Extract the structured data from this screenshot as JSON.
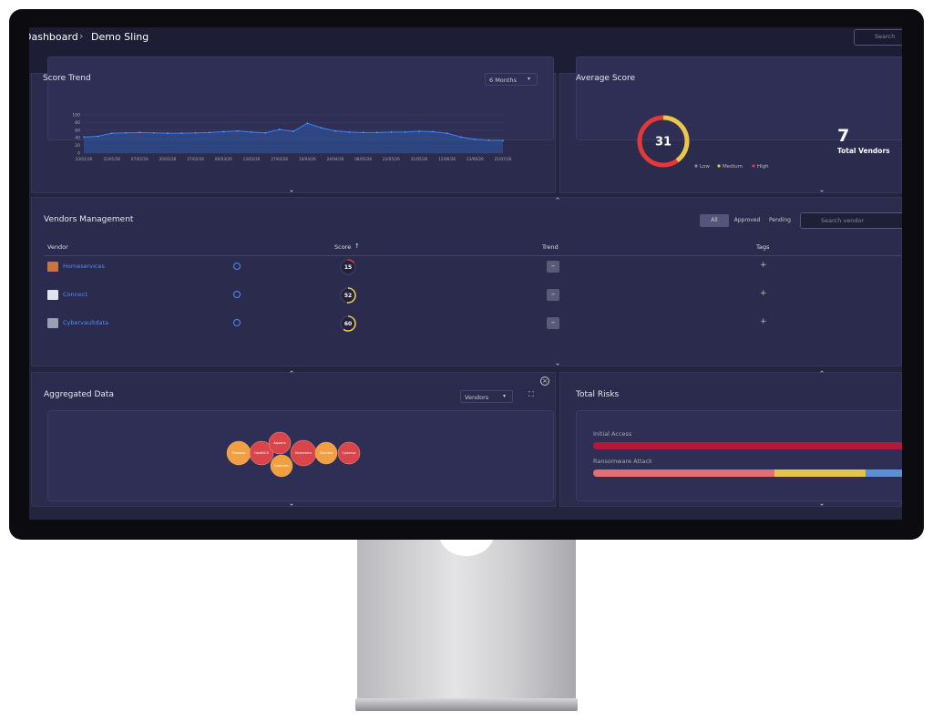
{
  "header": {
    "breadcrumb": [
      "Dashboard",
      "Demo Sling"
    ],
    "search_placeholder": "Search"
  },
  "score_trend": {
    "title": "Score Trend",
    "period": "6 Months",
    "ylim": [
      0,
      100
    ],
    "yticks": [
      0,
      20,
      40,
      60,
      80,
      100
    ],
    "xticks": [
      "23/01/26",
      "31/01/26",
      "07/02/26",
      "20/02/26",
      "27/02/26",
      "06/03/26",
      "13/03/26",
      "27/03/26",
      "10/04/26",
      "24/04/26",
      "08/05/26",
      "22/05/26",
      "31/05/26",
      "12/06/26",
      "23/06/26",
      "21/07/26"
    ],
    "values": [
      42,
      44,
      52,
      53,
      54,
      53,
      52,
      52,
      53,
      54,
      56,
      58,
      55,
      53,
      62,
      57,
      78,
      66,
      58,
      55,
      54,
      54,
      55,
      55,
      57,
      56,
      52,
      42,
      36,
      34,
      33
    ]
  },
  "average_score": {
    "title": "Average Score",
    "score": 31,
    "legend": [
      "Low",
      "Medium",
      "High"
    ],
    "total_vendors": 7,
    "total_vendors_label": "Total Vendors"
  },
  "vendors": {
    "title": "Vendors Management",
    "filters": [
      "All",
      "Approved",
      "Pending"
    ],
    "search_placeholder": "Search vendor",
    "columns": [
      "Vendor",
      "Score",
      "Trend",
      "Tags"
    ],
    "rows": [
      {
        "name": "Homeservices",
        "score": 15
      },
      {
        "name": "Connect",
        "score": 52
      },
      {
        "name": "Cybervaultdata",
        "score": 60
      }
    ]
  },
  "aggregated": {
    "title": "Aggregated Data",
    "group_by": "Vendors",
    "bubbles": [
      "Shakeso",
      "HostDCS",
      "Aquaris",
      "Cybervau",
      "Homeserv",
      "Connect",
      "Cyberva"
    ]
  },
  "total_risks": {
    "title": "Total Risks",
    "risks": [
      "Initial Access",
      "Ransomware Attack"
    ]
  }
}
